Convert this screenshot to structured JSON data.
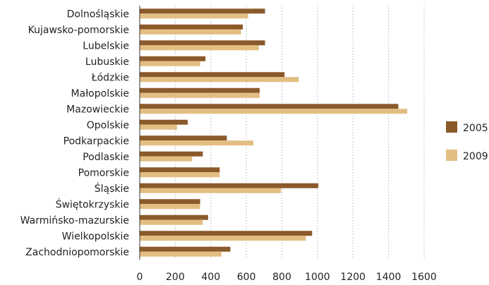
{
  "chart_data": {
    "type": "bar",
    "orientation": "horizontal",
    "categories": [
      "Dolnośląskie",
      "Kujawsko-pomorskie",
      "Lubelskie",
      "Lubuskie",
      "Łódzkie",
      "Małopolskie",
      "Mazowieckie",
      "Opolskie",
      "Podkarpackie",
      "Podlaskie",
      "Pomorskie",
      "Śląskie",
      "Świętokrzyskie",
      "Warmińsko-mazurskie",
      "Wielkopolskie",
      "Zachodniopomorskie"
    ],
    "series": [
      {
        "name": "2005",
        "color": "#8B5A2B",
        "values": [
          705,
          580,
          705,
          370,
          815,
          675,
          1455,
          270,
          490,
          355,
          450,
          1005,
          340,
          385,
          970,
          510
        ]
      },
      {
        "name": "2009",
        "color": "#E2BE82",
        "values": [
          610,
          570,
          670,
          340,
          895,
          675,
          1505,
          210,
          640,
          295,
          450,
          795,
          340,
          355,
          935,
          460
        ]
      }
    ],
    "xlim": [
      0,
      1600
    ],
    "xticks": [
      "0",
      "200",
      "400",
      "600",
      "800",
      "1000",
      "1200",
      "1400",
      "1600"
    ],
    "grid": "vertical-dotted",
    "legend_position": "right"
  }
}
